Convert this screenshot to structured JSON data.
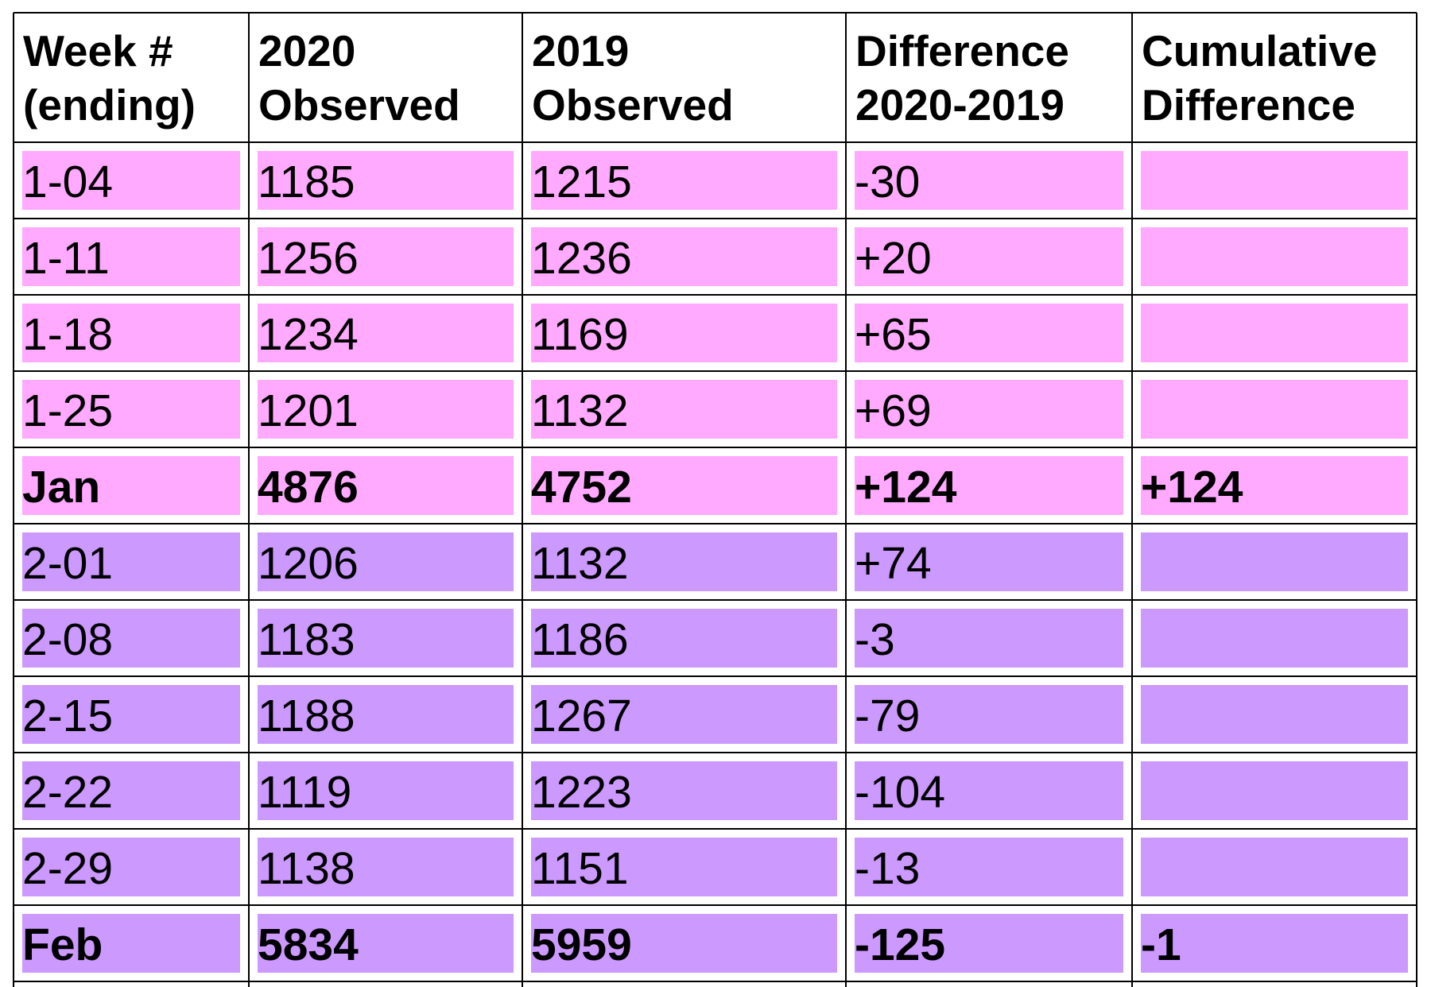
{
  "table": {
    "header": [
      "Week #\n(ending)",
      "2020\nObserved",
      "2019\nObserved",
      "Difference\n2020-2019",
      "Cumulative\nDifference"
    ],
    "groups": [
      {
        "color": "#ffaaff",
        "rows": [
          [
            "1-04",
            "1185",
            "1215",
            "-30"
          ],
          [
            "1-11",
            "1256",
            "1236",
            "+20"
          ],
          [
            "1-18",
            "1234",
            "1169",
            "+65"
          ],
          [
            "1-25",
            "1201",
            "1132",
            "+69"
          ]
        ],
        "total": [
          "Jan",
          "4876",
          "4752",
          "+124",
          "+124"
        ]
      },
      {
        "color": "#cc99ff",
        "rows": [
          [
            "2-01",
            "1206",
            "1132",
            "+74"
          ],
          [
            "2-08",
            "1183",
            "1186",
            "-3"
          ],
          [
            "2-15",
            "1188",
            "1267",
            "-79"
          ],
          [
            "2-22",
            "1119",
            "1223",
            "-104"
          ],
          [
            "2-29",
            "1138",
            "1151",
            "-13"
          ]
        ],
        "total": [
          "Feb",
          "5834",
          "5959",
          "-125",
          "-1"
        ]
      }
    ]
  }
}
